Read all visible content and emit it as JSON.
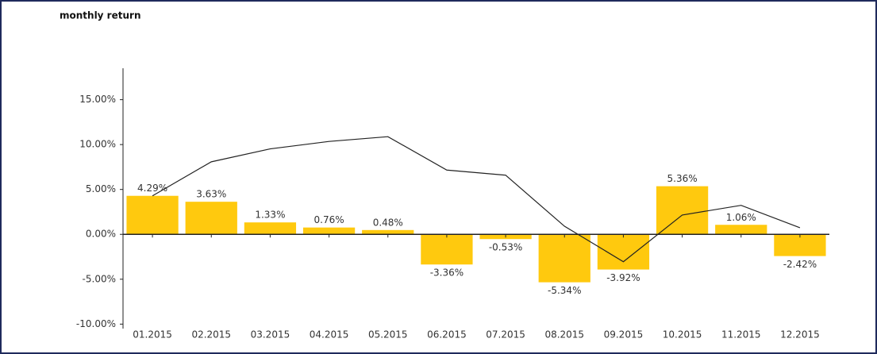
{
  "chart_data": {
    "type": "bar",
    "title": "monthly return",
    "categories": [
      "01.2015",
      "02.2015",
      "03.2015",
      "04.2015",
      "05.2015",
      "06.2015",
      "07.2015",
      "08.2015",
      "09.2015",
      "10.2015",
      "11.2015",
      "12.2015"
    ],
    "values": [
      4.29,
      3.63,
      1.33,
      0.76,
      0.48,
      -3.36,
      -0.53,
      -5.34,
      -3.92,
      5.36,
      1.06,
      -2.42
    ],
    "value_labels": [
      "4.29%",
      "3.63%",
      "1.33%",
      "0.76%",
      "0.48%",
      "-3.36%",
      "-0.53%",
      "-5.34%",
      "-3.92%",
      "5.36%",
      "1.06%",
      "-2.42%"
    ],
    "color": "#ffc90e",
    "line": {
      "type": "line",
      "color": "#222222",
      "values": [
        4.29,
        8.08,
        9.52,
        10.35,
        10.88,
        7.16,
        6.59,
        0.9,
        -3.05,
        2.15,
        3.23,
        0.73
      ]
    },
    "ylim": [
      -10.5,
      18.5
    ],
    "yticks": [
      {
        "value": -10,
        "label": "-10.00%"
      },
      {
        "value": -5,
        "label": "-5.00%"
      },
      {
        "value": 0,
        "label": "0.00%"
      },
      {
        "value": 5,
        "label": "5.00%"
      },
      {
        "value": 10,
        "label": "10.00%"
      },
      {
        "value": 15,
        "label": "15.00%"
      }
    ]
  }
}
